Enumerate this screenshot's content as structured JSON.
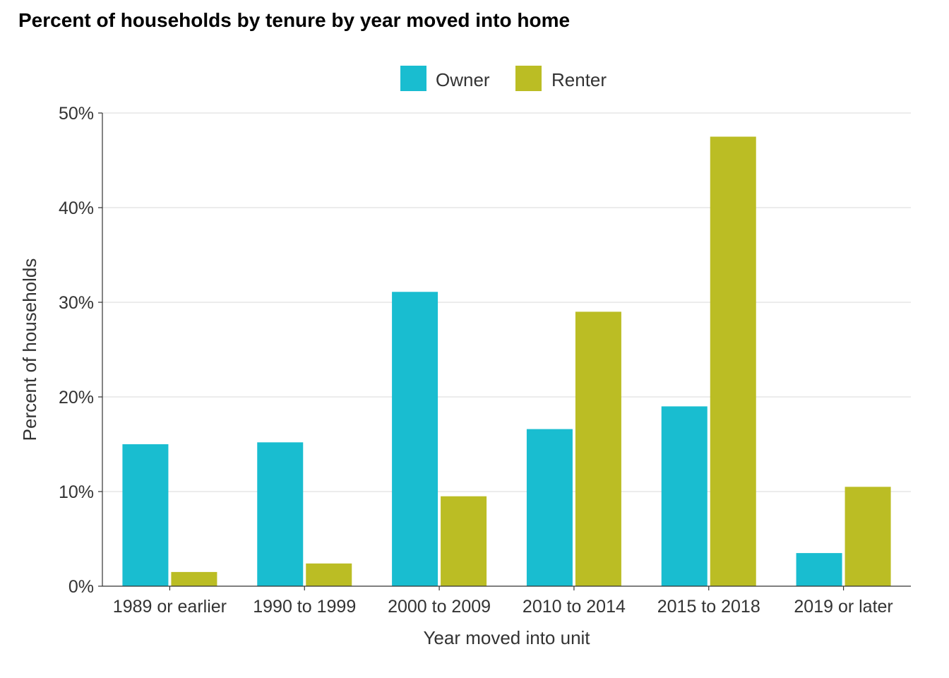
{
  "chart_data": {
    "type": "bar",
    "title": "Percent of households by tenure by year moved into home",
    "xlabel": "Year moved into unit",
    "ylabel": "Percent of households",
    "categories": [
      "1989 or earlier",
      "1990 to 1999",
      "2000 to 2009",
      "2010 to 2014",
      "2015 to 2018",
      "2019 or later"
    ],
    "series": [
      {
        "name": "Owner",
        "color": "#19BDD0",
        "values": [
          15.0,
          15.2,
          31.1,
          16.6,
          19.0,
          3.5
        ]
      },
      {
        "name": "Renter",
        "color": "#BBBD24",
        "values": [
          1.5,
          2.4,
          9.5,
          29.0,
          47.5,
          10.5
        ]
      }
    ],
    "ylim": [
      0,
      50
    ],
    "yticks": [
      0,
      10,
      20,
      30,
      40,
      50
    ],
    "ytick_labels": [
      "0%",
      "10%",
      "20%",
      "30%",
      "40%",
      "50%"
    ],
    "grid": true,
    "legend_position": "top"
  }
}
